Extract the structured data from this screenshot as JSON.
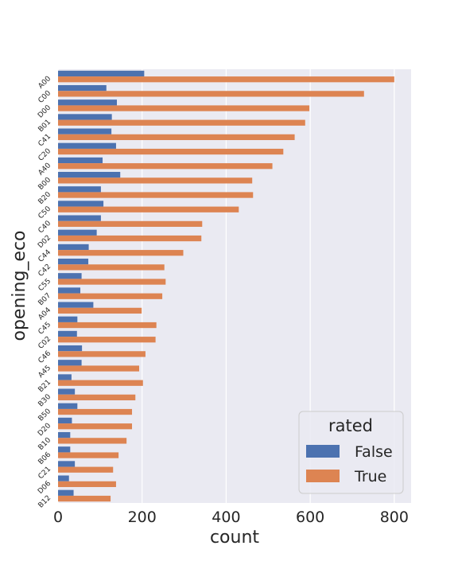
{
  "chart_data": {
    "type": "bar",
    "orientation": "horizontal",
    "title": "",
    "xlabel": "count",
    "ylabel": "opening_eco",
    "xlim": [
      0,
      840
    ],
    "xticks": [
      0,
      200,
      400,
      600,
      800
    ],
    "grid": true,
    "legend": {
      "title": "rated",
      "placement": "bottom-right"
    },
    "categories": [
      "A00",
      "C00",
      "D00",
      "B01",
      "C41",
      "C20",
      "A40",
      "B00",
      "B20",
      "C50",
      "C40",
      "D02",
      "C44",
      "C42",
      "C55",
      "B07",
      "A04",
      "C45",
      "C02",
      "C46",
      "A45",
      "B21",
      "B30",
      "B50",
      "D20",
      "B10",
      "B06",
      "C21",
      "D06",
      "B12"
    ],
    "series": [
      {
        "name": "False",
        "color": "#4c72b0",
        "values": [
          205,
          115,
          140,
          128,
          127,
          138,
          106,
          148,
          102,
          108,
          102,
          92,
          73,
          72,
          56,
          53,
          84,
          46,
          45,
          57,
          56,
          32,
          40,
          46,
          33,
          29,
          29,
          40,
          26,
          37
        ]
      },
      {
        "name": "True",
        "color": "#dd8452",
        "values": [
          800,
          728,
          598,
          588,
          563,
          536,
          510,
          462,
          464,
          430,
          343,
          341,
          298,
          253,
          256,
          248,
          199,
          234,
          232,
          208,
          193,
          202,
          184,
          176,
          176,
          163,
          144,
          131,
          138,
          125
        ]
      }
    ]
  }
}
